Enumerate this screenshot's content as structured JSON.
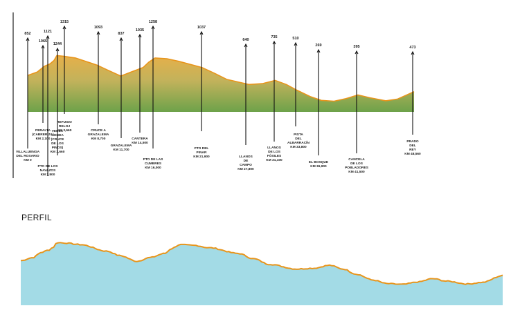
{
  "chart_data": [
    {
      "type": "area",
      "points": [
        {
          "km": 0,
          "elev": 852,
          "label": [
            "VILLALUENGA",
            "DEL ROSARIO",
            "KM 0"
          ]
        },
        {
          "km": 2.1,
          "elev": 1065,
          "label": [
            "PERALTA",
            "(CABRERIZA)",
            "KM 2,100"
          ]
        },
        {
          "km": 2.8,
          "elev": 1121,
          "label": [
            "PTO DE LOS",
            "NAVAZOS",
            "KM 2,800"
          ]
        },
        {
          "km": 3.66,
          "elev": 1244,
          "label": [
            "VEREA",
            "HONDA",
            "(CRUCE",
            "DE LOS",
            "PINOS)",
            "KM 3,660"
          ]
        },
        {
          "km": 3.66,
          "elev": 1315,
          "label": [
            "REFUGIO",
            "RELOJ",
            "KM 3,660"
          ]
        },
        {
          "km": 8.7,
          "elev": 1093,
          "label": [
            "CRUCE A",
            "GRAZALEMA",
            "KM 8,700"
          ]
        },
        {
          "km": 11.7,
          "elev": 837,
          "label": [
            "GRAZALEMA",
            "KM 11,700"
          ]
        },
        {
          "km": 14.5,
          "elev": 1035,
          "label": [
            "CANTERA",
            "KM 14,500"
          ]
        },
        {
          "km": 16.0,
          "elev": 1258,
          "label": [
            "PTO DE LAS",
            "CUMBRES",
            "KM 16,000"
          ]
        },
        {
          "km": 21.9,
          "elev": 1037,
          "label": [
            "PTO DEL",
            "PINAR",
            "KM 21,900"
          ]
        },
        {
          "km": 27.8,
          "elev": 640,
          "label": [
            "LLANOS",
            "DE",
            "CAMPO",
            "KM 27,800"
          ]
        },
        {
          "km": 31.1,
          "elev": 735,
          "label": [
            "LLANOS",
            "DE LOS",
            "FÓSILES",
            "KM 31,100"
          ]
        },
        {
          "km": 33.8,
          "elev": 510,
          "label": [
            "PISTA",
            "DEL",
            "ALBARRACÍN",
            "KM 33,800"
          ]
        },
        {
          "km": 36.9,
          "elev": 269,
          "label": [
            "EL BOSQUE",
            "KM 36,900"
          ]
        },
        {
          "km": 41.5,
          "elev": 395,
          "label": [
            "CANCELA",
            "DE LOS",
            "POBLADORES",
            "KM 41,500"
          ]
        },
        {
          "km": 48.56,
          "elev": 473,
          "label": [
            "PRADO",
            "DEL",
            "REY",
            "KM 48,560"
          ]
        }
      ]
    },
    {
      "type": "area",
      "title": "PERFIL",
      "colors": {
        "fill": "#a3dbe6",
        "line": "#e8951c"
      }
    }
  ],
  "colors": {
    "top_fill_upper": "#e3a93a",
    "top_fill_lower": "#70a449",
    "line": "#e8951c"
  }
}
